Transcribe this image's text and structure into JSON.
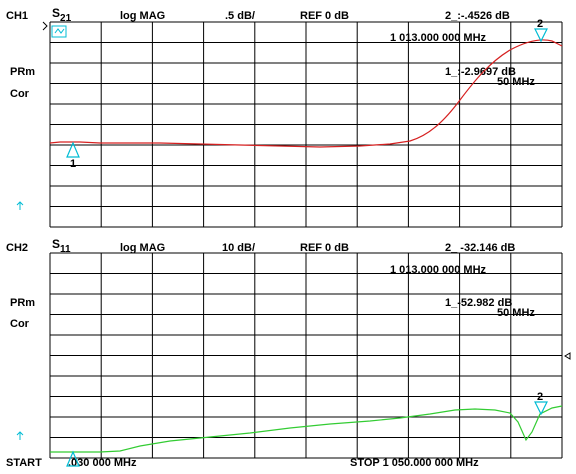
{
  "ch1": {
    "channel": "CH1",
    "param_main": "S",
    "param_sub": "21",
    "format": "log MAG",
    "scale": ".5 dB/",
    "ref": "REF 0 dB",
    "marker_readout": "2_:-.4526  dB",
    "marker_freq": "1 013.000 000 MHz",
    "marker1_readout": "1_:-2.9697 dB",
    "marker1_freq": "50 MHz",
    "label_prm": "PRm",
    "label_cor": "Cor",
    "marker1_label": "1",
    "marker2_label": "2",
    "trace_color": "#d62020"
  },
  "ch2": {
    "channel": "CH2",
    "param_main": "S",
    "param_sub": "11",
    "format": "log MAG",
    "scale": "10 dB/",
    "ref": "REF 0 dB",
    "marker_readout": "2_ -32.146 dB",
    "marker_freq": "1 013.000 000 MHz",
    "marker1_readout": "1_-52.982 dB",
    "marker1_freq": "50 MHz",
    "label_prm": "PRm",
    "label_cor": "Cor",
    "marker2_label": "2",
    "trace_color": "#33cc33"
  },
  "footer": {
    "start_label": "START",
    "start_value": ".030 000 MHz",
    "stop": "STOP 1 050.000 000 MHz"
  },
  "icons": {
    "ch1_status": "cal-status-icon",
    "ref_arrow": "reference-arrow-icon"
  }
}
